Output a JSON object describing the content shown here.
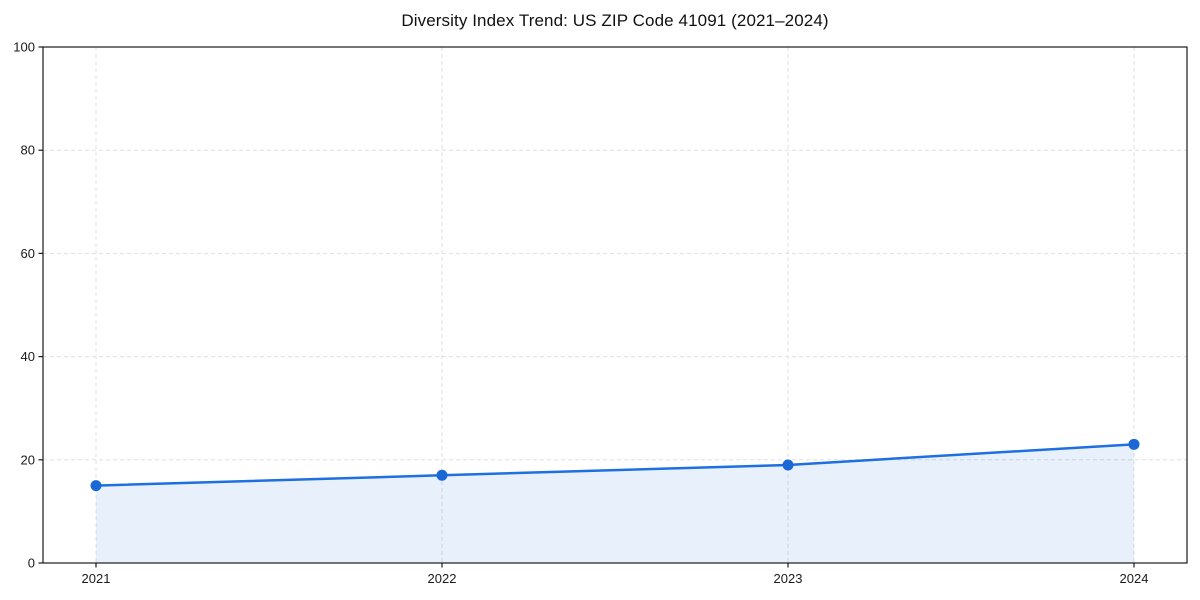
{
  "chart_data": {
    "type": "line",
    "title": "Diversity Index Trend: US ZIP Code 41091 (2021–2024)",
    "series_name": "Diversity Index",
    "x": [
      "2021",
      "2022",
      "2023",
      "2024"
    ],
    "values": [
      15,
      17,
      19,
      23
    ],
    "xlabel": "",
    "ylabel": "",
    "ylim": [
      0,
      100
    ],
    "yticks": [
      0,
      20,
      40,
      60,
      80,
      100
    ],
    "grid": true,
    "grid_style": "dashed",
    "legend": "none",
    "area_fill": true,
    "area_opacity": 0.1,
    "marker": "circle",
    "colors": {
      "line": "#1e6fe0",
      "marker": "#1a67d6",
      "area_apparent": "#e8f0fc",
      "grid": "#e0e0e0",
      "axis": "#1a1a1a",
      "tick_text": "#1a1a1a",
      "title_text": "#111111",
      "background": "#ffffff"
    }
  }
}
